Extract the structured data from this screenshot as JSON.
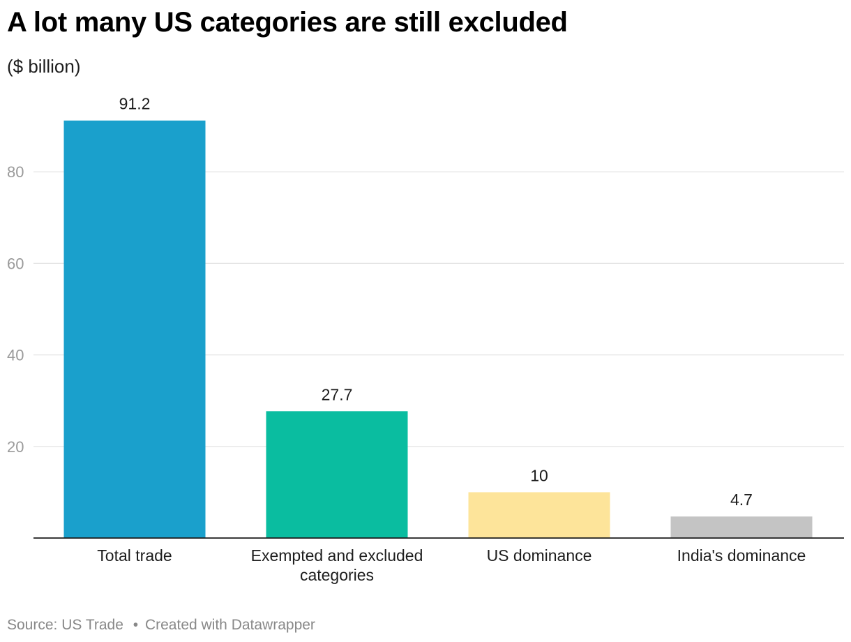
{
  "title": "A lot many US categories are still excluded",
  "subtitle": "($ billion)",
  "footer": {
    "source": "Source: US Trade",
    "separator": "•",
    "credit": "Created with Datawrapper"
  },
  "chart_data": {
    "type": "bar",
    "title": "A lot many US categories are still excluded",
    "ylabel": "($ billion)",
    "xlabel": "",
    "ylim": [
      0,
      100
    ],
    "yticks": [
      20,
      40,
      60,
      80
    ],
    "grid": true,
    "categories": [
      [
        "Total trade"
      ],
      [
        "Exempted and excluded",
        "categories"
      ],
      [
        "US dominance"
      ],
      [
        "India's dominance"
      ]
    ],
    "values": [
      91.2,
      27.7,
      10,
      4.7
    ],
    "value_labels": [
      "91.2",
      "27.7",
      "10",
      "4.7"
    ],
    "colors": [
      "#1aa0cc",
      "#0abda0",
      "#fde49a",
      "#c4c4c4"
    ]
  }
}
